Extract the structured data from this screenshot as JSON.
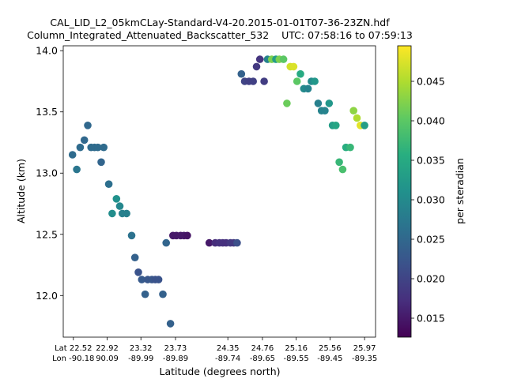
{
  "chart_data": {
    "type": "scatter",
    "title_line1": "CAL_LID_L2_05kmCLay-Standard-V4-20.2015-01-01T07-36-23ZN.hdf",
    "title_line2": "Column_Integrated_Attenuated_Backscatter_532    UTC: 07:58:16 to 07:59:13",
    "xlabel": "Latitude (degrees north)",
    "ylabel": "Altitude (km)",
    "colorbar_label": "per steradian",
    "xlim": [
      22.4,
      26.1
    ],
    "ylim": [
      11.66,
      14.04
    ],
    "y_ticks": [
      12.0,
      12.5,
      13.0,
      13.5,
      14.0
    ],
    "y_tick_labels": [
      "12.0",
      "12.5",
      "13.0",
      "13.5",
      "14.0"
    ],
    "x_ticks": [
      {
        "x": 22.52,
        "lat": "Lat 22.52",
        "lon": "Lon -90.18"
      },
      {
        "x": 22.92,
        "lat": "22.92",
        "lon": "90.09"
      },
      {
        "x": 23.32,
        "lat": "23.32",
        "lon": "-89.99"
      },
      {
        "x": 23.73,
        "lat": "23.73",
        "lon": "-89.89"
      },
      {
        "x": 24.35,
        "lat": "24.35",
        "lon": "-89.74"
      },
      {
        "x": 24.76,
        "lat": "24.76",
        "lon": "-89.65"
      },
      {
        "x": 25.16,
        "lat": "25.16",
        "lon": "-89.55"
      },
      {
        "x": 25.56,
        "lat": "25.56",
        "lon": "-89.45"
      },
      {
        "x": 25.97,
        "lat": "25.97",
        "lon": "-89.35"
      }
    ],
    "colorbar_range": [
      0.0126,
      0.0495
    ],
    "colorbar_ticks": [
      0.015,
      0.02,
      0.025,
      0.03,
      0.035,
      0.04,
      0.045
    ],
    "colorbar_tick_labels": [
      "0.015",
      "0.020",
      "0.025",
      "0.030",
      "0.035",
      "0.040",
      "0.045"
    ],
    "points": [
      {
        "x": 22.51,
        "y": 13.15,
        "v": 0.0255
      },
      {
        "x": 22.56,
        "y": 13.03,
        "v": 0.027
      },
      {
        "x": 22.6,
        "y": 13.21,
        "v": 0.0255
      },
      {
        "x": 22.65,
        "y": 13.27,
        "v": 0.025
      },
      {
        "x": 22.69,
        "y": 13.39,
        "v": 0.025
      },
      {
        "x": 22.73,
        "y": 13.21,
        "v": 0.0255
      },
      {
        "x": 22.77,
        "y": 13.21,
        "v": 0.0255
      },
      {
        "x": 22.81,
        "y": 13.21,
        "v": 0.0255
      },
      {
        "x": 22.85,
        "y": 13.09,
        "v": 0.0245
      },
      {
        "x": 22.88,
        "y": 13.21,
        "v": 0.0255
      },
      {
        "x": 22.94,
        "y": 12.91,
        "v": 0.026
      },
      {
        "x": 22.98,
        "y": 12.67,
        "v": 0.0305
      },
      {
        "x": 23.03,
        "y": 12.79,
        "v": 0.031
      },
      {
        "x": 23.07,
        "y": 12.73,
        "v": 0.0295
      },
      {
        "x": 23.1,
        "y": 12.67,
        "v": 0.0285
      },
      {
        "x": 23.15,
        "y": 12.67,
        "v": 0.0285
      },
      {
        "x": 23.21,
        "y": 12.49,
        "v": 0.0265
      },
      {
        "x": 23.25,
        "y": 12.31,
        "v": 0.024
      },
      {
        "x": 23.29,
        "y": 12.19,
        "v": 0.022
      },
      {
        "x": 23.33,
        "y": 12.13,
        "v": 0.023
      },
      {
        "x": 23.37,
        "y": 12.01,
        "v": 0.024
      },
      {
        "x": 23.4,
        "y": 12.13,
        "v": 0.0225
      },
      {
        "x": 23.45,
        "y": 12.13,
        "v": 0.0225
      },
      {
        "x": 23.49,
        "y": 12.13,
        "v": 0.022
      },
      {
        "x": 23.53,
        "y": 12.13,
        "v": 0.022
      },
      {
        "x": 23.58,
        "y": 12.01,
        "v": 0.024
      },
      {
        "x": 23.62,
        "y": 12.43,
        "v": 0.0245
      },
      {
        "x": 23.67,
        "y": 11.77,
        "v": 0.024
      },
      {
        "x": 23.7,
        "y": 12.49,
        "v": 0.015
      },
      {
        "x": 23.74,
        "y": 12.49,
        "v": 0.015
      },
      {
        "x": 23.79,
        "y": 12.49,
        "v": 0.015
      },
      {
        "x": 23.83,
        "y": 12.49,
        "v": 0.015
      },
      {
        "x": 23.87,
        "y": 12.49,
        "v": 0.0145
      },
      {
        "x": 24.13,
        "y": 12.43,
        "v": 0.015
      },
      {
        "x": 24.2,
        "y": 12.43,
        "v": 0.017
      },
      {
        "x": 24.25,
        "y": 12.43,
        "v": 0.0175
      },
      {
        "x": 24.29,
        "y": 12.43,
        "v": 0.0175
      },
      {
        "x": 24.33,
        "y": 12.43,
        "v": 0.0175
      },
      {
        "x": 24.38,
        "y": 12.43,
        "v": 0.0185
      },
      {
        "x": 24.42,
        "y": 12.43,
        "v": 0.0185
      },
      {
        "x": 24.46,
        "y": 12.43,
        "v": 0.0215
      },
      {
        "x": 24.51,
        "y": 13.81,
        "v": 0.024
      },
      {
        "x": 24.55,
        "y": 13.75,
        "v": 0.02
      },
      {
        "x": 24.6,
        "y": 13.75,
        "v": 0.0195
      },
      {
        "x": 24.65,
        "y": 13.75,
        "v": 0.0195
      },
      {
        "x": 24.69,
        "y": 13.87,
        "v": 0.0185
      },
      {
        "x": 24.73,
        "y": 13.93,
        "v": 0.018
      },
      {
        "x": 24.78,
        "y": 13.75,
        "v": 0.019
      },
      {
        "x": 24.82,
        "y": 13.93,
        "v": 0.029
      },
      {
        "x": 24.87,
        "y": 13.93,
        "v": 0.042
      },
      {
        "x": 24.92,
        "y": 13.93,
        "v": 0.033
      },
      {
        "x": 24.96,
        "y": 13.93,
        "v": 0.042
      },
      {
        "x": 25.01,
        "y": 13.93,
        "v": 0.04
      },
      {
        "x": 25.05,
        "y": 13.57,
        "v": 0.041
      },
      {
        "x": 25.09,
        "y": 13.87,
        "v": 0.047
      },
      {
        "x": 25.13,
        "y": 13.87,
        "v": 0.0475
      },
      {
        "x": 25.17,
        "y": 13.75,
        "v": 0.04
      },
      {
        "x": 25.21,
        "y": 13.81,
        "v": 0.035
      },
      {
        "x": 25.25,
        "y": 13.69,
        "v": 0.03
      },
      {
        "x": 25.3,
        "y": 13.69,
        "v": 0.029
      },
      {
        "x": 25.34,
        "y": 13.75,
        "v": 0.03
      },
      {
        "x": 25.38,
        "y": 13.75,
        "v": 0.032
      },
      {
        "x": 25.42,
        "y": 13.57,
        "v": 0.0285
      },
      {
        "x": 25.46,
        "y": 13.51,
        "v": 0.029
      },
      {
        "x": 25.5,
        "y": 13.51,
        "v": 0.029
      },
      {
        "x": 25.55,
        "y": 13.57,
        "v": 0.032
      },
      {
        "x": 25.59,
        "y": 13.39,
        "v": 0.033
      },
      {
        "x": 25.63,
        "y": 13.39,
        "v": 0.034
      },
      {
        "x": 25.67,
        "y": 13.09,
        "v": 0.037
      },
      {
        "x": 25.71,
        "y": 13.03,
        "v": 0.0385
      },
      {
        "x": 25.75,
        "y": 13.21,
        "v": 0.0355
      },
      {
        "x": 25.8,
        "y": 13.21,
        "v": 0.037
      },
      {
        "x": 25.84,
        "y": 13.51,
        "v": 0.043
      },
      {
        "x": 25.88,
        "y": 13.45,
        "v": 0.045
      },
      {
        "x": 25.92,
        "y": 13.39,
        "v": 0.048
      },
      {
        "x": 25.97,
        "y": 13.39,
        "v": 0.033
      }
    ]
  }
}
